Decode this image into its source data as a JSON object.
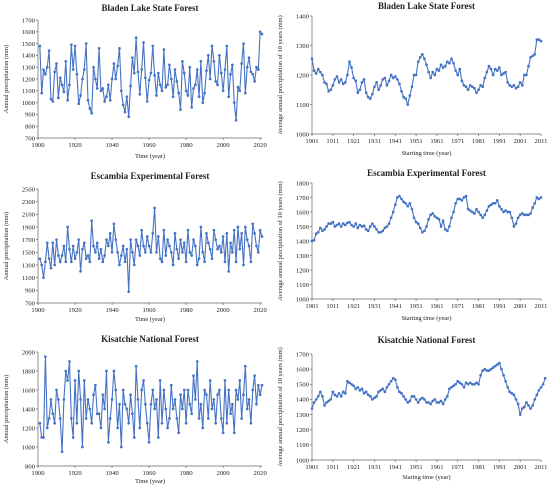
{
  "chart_data": [
    {
      "type": "line",
      "title": "Bladen Lake State Forest",
      "xlabel": "Time (year)",
      "ylabel": "Annual precipitation (mm)",
      "xlim": [
        1900,
        2021
      ],
      "ylim": [
        700,
        1700
      ],
      "xticks": [
        1900,
        1920,
        1940,
        1960,
        1980,
        2000,
        2020
      ],
      "yticks": [
        700,
        800,
        900,
        1000,
        1100,
        1200,
        1300,
        1400,
        1500,
        1600,
        1700
      ],
      "grid": false,
      "x_start": 1901,
      "values": [
        1480,
        1080,
        1280,
        1240,
        1300,
        1440,
        1030,
        1010,
        1260,
        1330,
        1040,
        1210,
        1150,
        1090,
        1350,
        1020,
        1150,
        1490,
        1280,
        1480,
        1240,
        990,
        1060,
        1200,
        1280,
        1500,
        1020,
        950,
        910,
        1300,
        1200,
        1120,
        1460,
        1100,
        1120,
        1010,
        1050,
        1150,
        1020,
        1200,
        1330,
        1200,
        1310,
        1460,
        1100,
        980,
        920,
        1050,
        880,
        1140,
        1380,
        1250,
        1550,
        1260,
        1070,
        1280,
        1510,
        1210,
        1010,
        1190,
        1250,
        1480,
        1230,
        1060,
        1250,
        1150,
        1100,
        1450,
        1130,
        1150,
        1320,
        1200,
        1050,
        1280,
        1180,
        1080,
        940,
        1350,
        1250,
        1100,
        1060,
        1300,
        960,
        1120,
        1150,
        1280,
        1050,
        1350,
        1000,
        1080,
        1270,
        1400,
        1200,
        1480,
        1350,
        1180,
        1150,
        1400,
        1250,
        1100,
        1280,
        1480,
        1050,
        1240,
        1320,
        1000,
        850,
        1130,
        1100,
        1330,
        1500,
        1080,
        1300,
        1380,
        1260,
        1240,
        1180,
        1300,
        1280,
        1600,
        1580
      ]
    },
    {
      "type": "line",
      "title": "Bladen Lake State Forest",
      "xlabel": "Starting time (year)",
      "ylabel": "Average annual precipitation of 10 years (mm)",
      "xlim": [
        1901,
        2011
      ],
      "ylim": [
        1000,
        1400
      ],
      "xticks": [
        1901,
        1911,
        1921,
        1931,
        1941,
        1951,
        1961,
        1971,
        1981,
        1991,
        2001,
        2011
      ],
      "yticks": [
        1000,
        1100,
        1200,
        1300,
        1400
      ],
      "grid": false,
      "x_start": 1901,
      "values": [
        1255,
        1215,
        1205,
        1220,
        1210,
        1200,
        1175,
        1170,
        1145,
        1150,
        1165,
        1185,
        1195,
        1175,
        1185,
        1170,
        1175,
        1200,
        1245,
        1225,
        1190,
        1180,
        1140,
        1150,
        1175,
        1185,
        1140,
        1125,
        1120,
        1135,
        1160,
        1175,
        1150,
        1165,
        1185,
        1190,
        1165,
        1180,
        1200,
        1190,
        1195,
        1185,
        1170,
        1145,
        1125,
        1120,
        1100,
        1130,
        1160,
        1200,
        1200,
        1245,
        1260,
        1270,
        1255,
        1235,
        1210,
        1190,
        1210,
        1200,
        1220,
        1215,
        1235,
        1225,
        1230,
        1245,
        1240,
        1255,
        1240,
        1215,
        1200,
        1220,
        1180,
        1165,
        1160,
        1150,
        1165,
        1160,
        1155,
        1140,
        1150,
        1165,
        1160,
        1190,
        1210,
        1230,
        1220,
        1200,
        1220,
        1215,
        1225,
        1200,
        1205,
        1210,
        1175,
        1165,
        1160,
        1165,
        1155,
        1160,
        1175,
        1165,
        1200,
        1200,
        1230,
        1260,
        1265,
        1270,
        1320,
        1320,
        1315
      ]
    },
    {
      "type": "line",
      "title": "Escambia Experimental Forest",
      "xlabel": "Time (year)",
      "ylabel": "Annual precipitation (mm)",
      "xlim": [
        1900,
        2021
      ],
      "ylim": [
        700,
        2500
      ],
      "xticks": [
        1900,
        1920,
        1940,
        1960,
        1980,
        2000,
        2020
      ],
      "yticks": [
        700,
        900,
        1100,
        1300,
        1500,
        1700,
        1900,
        2100,
        2300,
        2500
      ],
      "grid": false,
      "x_start": 1901,
      "values": [
        1400,
        1300,
        1100,
        1350,
        1650,
        1400,
        1250,
        1650,
        1300,
        1700,
        1450,
        1350,
        1450,
        1600,
        1350,
        1900,
        1550,
        1350,
        1600,
        1400,
        1500,
        1700,
        1200,
        1550,
        1650,
        1400,
        1450,
        1350,
        2000,
        1600,
        1500,
        1650,
        1400,
        1550,
        1350,
        1450,
        1700,
        1600,
        1800,
        1500,
        1950,
        1700,
        1500,
        1300,
        1450,
        1600,
        1350,
        1550,
        880,
        1700,
        1500,
        1300,
        1700,
        1600,
        1450,
        1850,
        1600,
        1500,
        1750,
        1600,
        1500,
        1800,
        2200,
        1500,
        1750,
        1400,
        1350,
        1850,
        1450,
        1700,
        1600,
        1500,
        1300,
        1800,
        1550,
        1400,
        1700,
        1500,
        1650,
        1350,
        1850,
        1500,
        1450,
        1700,
        1600,
        1300,
        1400,
        1900,
        1500,
        1350,
        1800,
        1650,
        1550,
        1400,
        1850,
        1700,
        1550,
        1600,
        1500,
        1750,
        1350,
        1800,
        1200,
        1650,
        1500,
        1850,
        1350,
        1900,
        1550,
        1800,
        1300,
        1900,
        1700,
        1600,
        1350,
        1950,
        1800,
        1600,
        1500,
        1850,
        1750
      ]
    },
    {
      "type": "line",
      "title": "Escambia Experimental Forest",
      "xlabel": "Starting time (year)",
      "ylabel": "Average annual precipitation of 10 years (mm)",
      "xlim": [
        1901,
        2011
      ],
      "ylim": [
        1000,
        1800
      ],
      "xticks": [
        1901,
        1911,
        1921,
        1931,
        1941,
        1951,
        1961,
        1971,
        1981,
        1991,
        2001,
        2011
      ],
      "yticks": [
        1000,
        1100,
        1200,
        1300,
        1400,
        1500,
        1600,
        1700,
        1800
      ],
      "grid": false,
      "x_start": 1901,
      "values": [
        1400,
        1405,
        1450,
        1460,
        1490,
        1470,
        1480,
        1500,
        1520,
        1520,
        1530,
        1500,
        1510,
        1520,
        1500,
        1520,
        1510,
        1525,
        1530,
        1510,
        1500,
        1520,
        1490,
        1510,
        1500,
        1505,
        1480,
        1470,
        1500,
        1520,
        1500,
        1480,
        1460,
        1460,
        1470,
        1490,
        1500,
        1520,
        1560,
        1600,
        1650,
        1700,
        1710,
        1690,
        1670,
        1660,
        1640,
        1660,
        1620,
        1560,
        1530,
        1520,
        1490,
        1460,
        1470,
        1500,
        1550,
        1580,
        1590,
        1570,
        1560,
        1550,
        1500,
        1540,
        1480,
        1470,
        1500,
        1560,
        1600,
        1660,
        1690,
        1690,
        1680,
        1700,
        1710,
        1620,
        1610,
        1600,
        1590,
        1620,
        1600,
        1580,
        1560,
        1580,
        1610,
        1640,
        1650,
        1660,
        1660,
        1680,
        1640,
        1620,
        1600,
        1610,
        1600,
        1600,
        1560,
        1500,
        1520,
        1560,
        1580,
        1590,
        1580,
        1580,
        1580,
        1590,
        1630,
        1660,
        1700,
        1690,
        1700
      ]
    },
    {
      "type": "line",
      "title": "Kisatchie National Forest",
      "xlabel": "Time (year)",
      "ylabel": "Annual precipitation (mm)",
      "xlim": [
        1900,
        2021
      ],
      "ylim": [
        800,
        2000
      ],
      "xticks": [
        1900,
        1920,
        1940,
        1960,
        1980,
        2000,
        2020
      ],
      "yticks": [
        800,
        1000,
        1200,
        1400,
        1600,
        1800,
        2000
      ],
      "grid": false,
      "x_start": 1901,
      "values": [
        1250,
        1100,
        1100,
        1950,
        1200,
        1300,
        1500,
        1350,
        1250,
        1600,
        1500,
        1300,
        950,
        1500,
        1800,
        1700,
        1900,
        1300,
        1100,
        1700,
        1250,
        1800,
        1500,
        1000,
        1700,
        1300,
        1500,
        1400,
        1250,
        1550,
        1650,
        1350,
        1350,
        1200,
        1550,
        1400,
        1800,
        1050,
        1300,
        1500,
        1800,
        1600,
        1200,
        1450,
        1000,
        1600,
        1450,
        1400,
        1250,
        1550,
        1350,
        1100,
        1850,
        1500,
        1200,
        1600,
        1700,
        1450,
        1250,
        1050,
        1450,
        1600,
        1400,
        1500,
        1100,
        1700,
        1250,
        1600,
        1400,
        1200,
        1300,
        1650,
        1400,
        1500,
        1300,
        1150,
        1550,
        1400,
        1600,
        1250,
        1600,
        1450,
        1350,
        1750,
        1500,
        1900,
        1300,
        1450,
        1200,
        1600,
        1550,
        1300,
        1700,
        1400,
        1500,
        1250,
        1550,
        1600,
        1300,
        1150,
        1700,
        1250,
        1600,
        1350,
        1450,
        1150,
        1600,
        1500,
        1700,
        1300,
        1550,
        1850,
        1400,
        1500,
        1250,
        1600,
        1750,
        1450,
        1650,
        1550,
        1650
      ]
    },
    {
      "type": "line",
      "title": "Kisatchie National Forest",
      "xlabel": "Staring time (year)",
      "ylabel": "Average annual precipitation of 10 years (mm)",
      "xlim": [
        1901,
        2011
      ],
      "ylim": [
        1000,
        1700
      ],
      "xticks": [
        1901,
        1911,
        1921,
        1931,
        1941,
        1951,
        1961,
        1971,
        1981,
        1991,
        2001,
        2011
      ],
      "yticks": [
        1000,
        1100,
        1200,
        1300,
        1400,
        1500,
        1600,
        1700
      ],
      "grid": false,
      "x_start": 1901,
      "values": [
        1340,
        1380,
        1400,
        1420,
        1450,
        1420,
        1360,
        1380,
        1390,
        1400,
        1450,
        1430,
        1420,
        1440,
        1420,
        1450,
        1440,
        1520,
        1510,
        1500,
        1490,
        1470,
        1480,
        1460,
        1470,
        1440,
        1450,
        1430,
        1420,
        1400,
        1410,
        1420,
        1450,
        1460,
        1470,
        1450,
        1480,
        1500,
        1520,
        1540,
        1530,
        1480,
        1450,
        1440,
        1420,
        1400,
        1380,
        1390,
        1420,
        1420,
        1400,
        1380,
        1400,
        1410,
        1400,
        1380,
        1380,
        1370,
        1390,
        1400,
        1380,
        1380,
        1390,
        1370,
        1400,
        1420,
        1470,
        1480,
        1490,
        1500,
        1520,
        1510,
        1500,
        1480,
        1510,
        1500,
        1510,
        1500,
        1500,
        1510,
        1500,
        1560,
        1590,
        1600,
        1590,
        1590,
        1600,
        1610,
        1620,
        1630,
        1640,
        1600,
        1560,
        1520,
        1480,
        1450,
        1440,
        1430,
        1400,
        1370,
        1300,
        1340,
        1350,
        1380,
        1360,
        1340,
        1360,
        1400,
        1430,
        1460,
        1480,
        1500,
        1540
      ]
    }
  ]
}
